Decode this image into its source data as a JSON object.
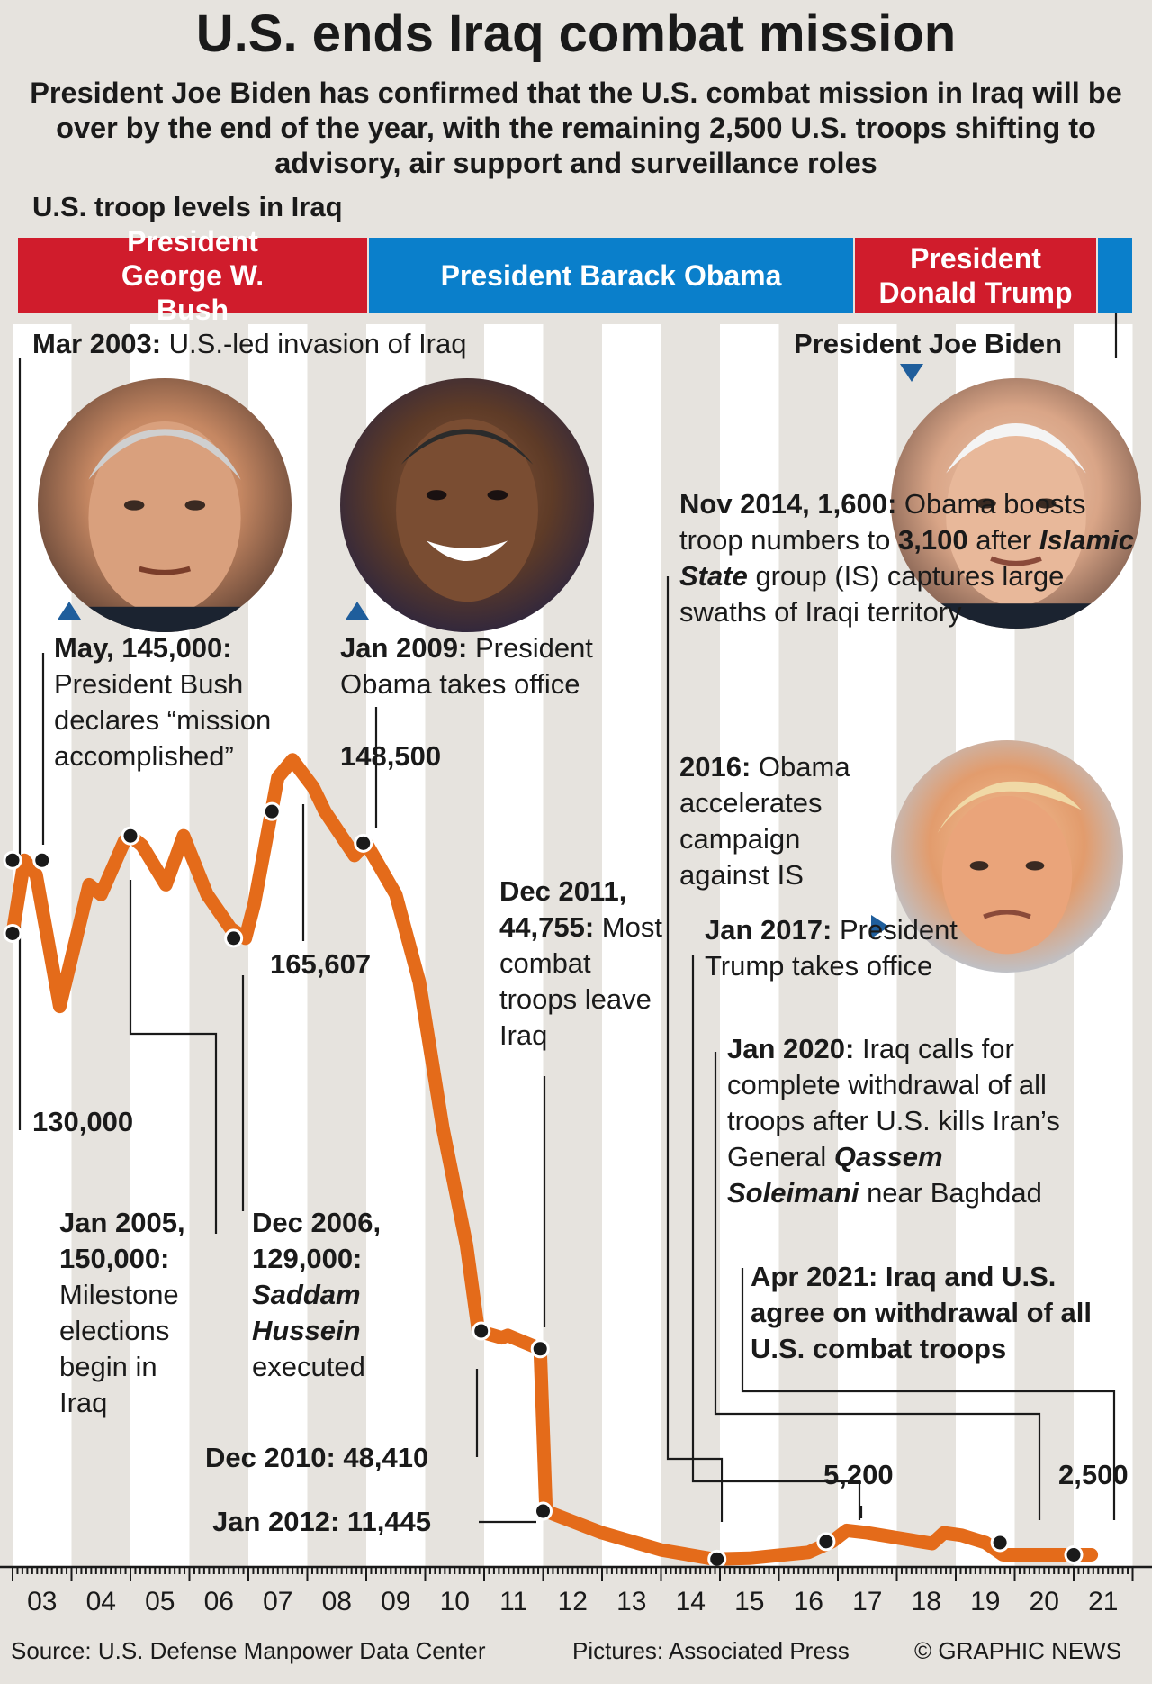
{
  "title": "U.S. ends Iraq combat mission",
  "subtitle": "President Joe Biden has confirmed that the U.S. combat mission in Iraq will be over by the end of the year, with the remaining 2,500 U.S. troops shifting to advisory, air support and surveillance roles",
  "section_title": "U.S. troop levels in Iraq",
  "presidents": {
    "bush": "President George W. Bush",
    "obama": "President Barack Obama",
    "trump": "President Donald Trump",
    "biden": "President Joe Biden"
  },
  "colors": {
    "line": "#e46b1a",
    "republican": "#d01c2c",
    "democrat": "#0a7fcb",
    "stripe": "#ffffff",
    "background": "#e6e3de"
  },
  "annotations": {
    "mar2003_date": "Mar 2003:",
    "mar2003_text": "U.S.-led invasion of Iraq",
    "may_head": "May, 145,000:",
    "may_text": "President Bush declares “mission accomplished”",
    "jan2009_date": "Jan 2009:",
    "jan2009_text": "President Obama takes office",
    "nov2014_head": "Nov 2014, 1,600:",
    "nov2014_text1": "Obama boosts troop numbers to",
    "nov2014_num": "3,100",
    "nov2014_text2": "after",
    "nov2014_is": "Islamic State",
    "nov2014_text3": "group (IS) captures large swaths of Iraqi territory",
    "y2016_date": "2016:",
    "y2016_text": "Obama accelerates campaign against IS",
    "jan2017_date": "Jan 2017:",
    "jan2017_text": "President Trump takes office",
    "dec2011_head": "Dec 2011, 44,755:",
    "dec2011_text": "Most combat troops leave Iraq",
    "jan2020_date": "Jan 2020:",
    "jan2020_text1": "Iraq calls for complete withdrawal of all troops after U.S. kills Iran’s General",
    "jan2020_name": "Qassem Soleimani",
    "jan2020_text2": "near Baghdad",
    "apr2021": "Apr 2021: Iraq and U.S. agree on withdrawal of all U.S. combat troops",
    "jan2005_head": "Jan 2005, 150,000:",
    "jan2005_text": "Milestone elections begin in Iraq",
    "dec2006_head": "Dec 2006, 129,000:",
    "dec2006_name": "Saddam Hussein",
    "dec2006_text": "executed",
    "v148500": "148,500",
    "v165607": "165,607",
    "v130000": "130,000",
    "dec2010": "Dec 2010: 48,410",
    "jan2012": "Jan 2012: 11,445",
    "v5200": "5,200",
    "v2500": "2,500"
  },
  "footer": {
    "source": "Source: U.S. Defense Manpower Data Center",
    "pictures": "Pictures: Associated Press",
    "credit": "© GRAPHIC NEWS"
  },
  "chart_data": {
    "type": "line",
    "title": "U.S. troop levels in Iraq",
    "x_tick_labels": [
      "03",
      "04",
      "05",
      "06",
      "07",
      "08",
      "09",
      "10",
      "11",
      "12",
      "13",
      "14",
      "15",
      "16",
      "17",
      "18",
      "19",
      "20",
      "21"
    ],
    "xlim": [
      2003.0,
      2022.0
    ],
    "ylim": [
      0,
      170000
    ],
    "grid": false,
    "series": [
      {
        "values": [
          [
            2003.0,
            130000
          ],
          [
            2003.2,
            145000
          ],
          [
            2003.4,
            142000
          ],
          [
            2003.8,
            115000
          ],
          [
            2004.3,
            140000
          ],
          [
            2004.5,
            138000
          ],
          [
            2004.9,
            149000
          ],
          [
            2005.0,
            150000
          ],
          [
            2005.2,
            148000
          ],
          [
            2005.6,
            140000
          ],
          [
            2005.9,
            150000
          ],
          [
            2006.3,
            138000
          ],
          [
            2006.7,
            131000
          ],
          [
            2006.95,
            129000
          ],
          [
            2007.1,
            136000
          ],
          [
            2007.5,
            162000
          ],
          [
            2007.75,
            165607
          ],
          [
            2008.1,
            160000
          ],
          [
            2008.3,
            155000
          ],
          [
            2008.8,
            146000
          ],
          [
            2009.0,
            148500
          ],
          [
            2009.5,
            138000
          ],
          [
            2009.9,
            120000
          ],
          [
            2010.3,
            90000
          ],
          [
            2010.7,
            66000
          ],
          [
            2010.9,
            48410
          ],
          [
            2011.3,
            47000
          ],
          [
            2011.4,
            47500
          ],
          [
            2011.6,
            46500
          ],
          [
            2011.95,
            44755
          ],
          [
            2012.05,
            11445
          ],
          [
            2013.0,
            7000
          ],
          [
            2014.0,
            3500
          ],
          [
            2014.9,
            1600
          ],
          [
            2015.5,
            1800
          ],
          [
            2016.0,
            2400
          ],
          [
            2016.5,
            3000
          ],
          [
            2016.9,
            5200
          ],
          [
            2017.15,
            7500
          ],
          [
            2017.5,
            7000
          ],
          [
            2018.0,
            6000
          ],
          [
            2018.6,
            4800
          ],
          [
            2018.8,
            7000
          ],
          [
            2019.1,
            6500
          ],
          [
            2019.5,
            5000
          ],
          [
            2019.8,
            2500
          ],
          [
            2020.5,
            2500
          ],
          [
            2021.0,
            2500
          ],
          [
            2021.3,
            2500
          ]
        ]
      }
    ],
    "markers": [
      {
        "x": 2003.0,
        "y": 145000
      },
      {
        "x": 2003.0,
        "y": 130000
      },
      {
        "x": 2003.5,
        "y": 145000
      },
      {
        "x": 2005.0,
        "y": 150000
      },
      {
        "x": 2006.75,
        "y": 129000
      },
      {
        "x": 2007.4,
        "y": 155000
      },
      {
        "x": 2008.95,
        "y": 148500
      },
      {
        "x": 2010.95,
        "y": 48410
      },
      {
        "x": 2011.95,
        "y": 44755
      },
      {
        "x": 2012.0,
        "y": 11445
      },
      {
        "x": 2014.95,
        "y": 1600
      },
      {
        "x": 2016.8,
        "y": 5200
      },
      {
        "x": 2019.75,
        "y": 5000
      },
      {
        "x": 2021.0,
        "y": 2500
      }
    ]
  }
}
